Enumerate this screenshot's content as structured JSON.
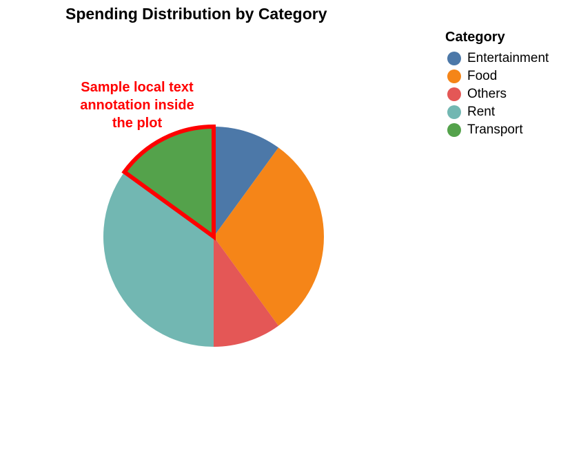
{
  "chart_data": {
    "type": "pie",
    "title": "Spending Distribution by Category",
    "legend_title": "Category",
    "legend_position": "top-right",
    "slices": [
      {
        "label": "Entertainment",
        "value": 10,
        "color": "#4c78a8"
      },
      {
        "label": "Food",
        "value": 30,
        "color": "#f58518"
      },
      {
        "label": "Others",
        "value": 10,
        "color": "#e45756"
      },
      {
        "label": "Rent",
        "value": 35,
        "color": "#72b7b2"
      },
      {
        "label": "Transport",
        "value": 15,
        "color": "#54a24b"
      }
    ],
    "highlighted_slice": "Transport",
    "highlight_color": "#ff0000",
    "annotation": {
      "lines": [
        "Sample local text",
        "annotation inside",
        "the plot"
      ],
      "color": "#ff0000"
    }
  }
}
